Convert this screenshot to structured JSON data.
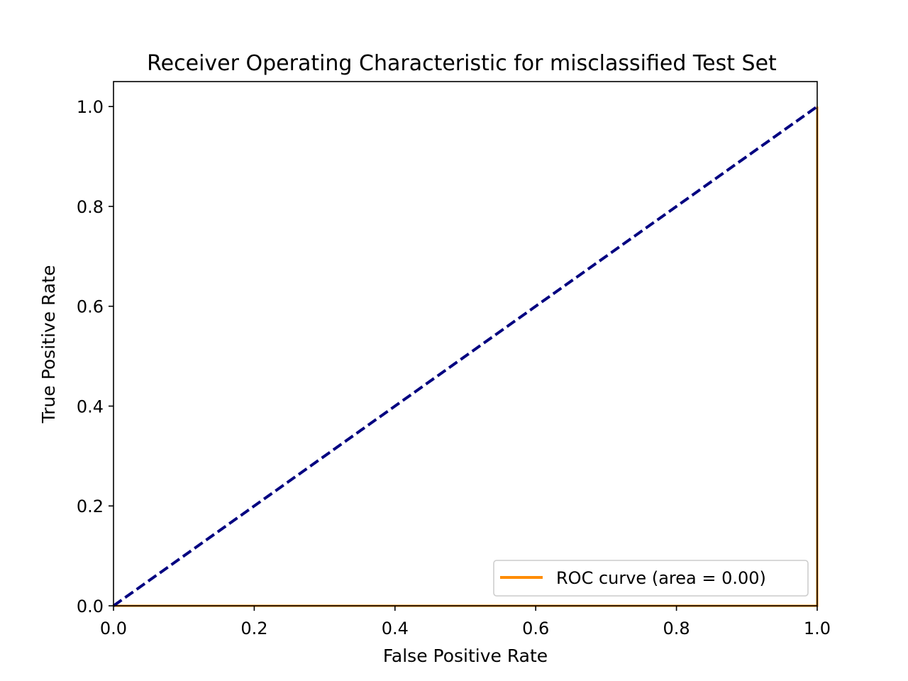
{
  "chart_data": {
    "type": "line",
    "title": "Receiver Operating Characteristic for misclassified Test Set",
    "xlabel": "False Positive Rate",
    "ylabel": "True Positive Rate",
    "xlim": [
      0.0,
      1.0
    ],
    "ylim": [
      0.0,
      1.05
    ],
    "xticks": [
      0.0,
      0.2,
      0.4,
      0.6,
      0.8,
      1.0
    ],
    "yticks": [
      0.0,
      0.2,
      0.4,
      0.6,
      0.8,
      1.0
    ],
    "xtick_labels": [
      "0.0",
      "0.2",
      "0.4",
      "0.6",
      "0.8",
      "1.0"
    ],
    "ytick_labels": [
      "0.0",
      "0.2",
      "0.4",
      "0.6",
      "0.8",
      "1.0"
    ],
    "grid": false,
    "legend_position": "lower-right",
    "series": [
      {
        "name": "ROC curve (area = 0.00)",
        "color": "#ff8c00",
        "style": "solid",
        "x": [
          0.0,
          1.0,
          1.0
        ],
        "y": [
          0.0,
          0.0,
          1.0
        ]
      },
      {
        "color": "#000080",
        "style": "dashed",
        "x": [
          0.0,
          1.0
        ],
        "y": [
          0.0,
          1.0
        ]
      }
    ]
  }
}
